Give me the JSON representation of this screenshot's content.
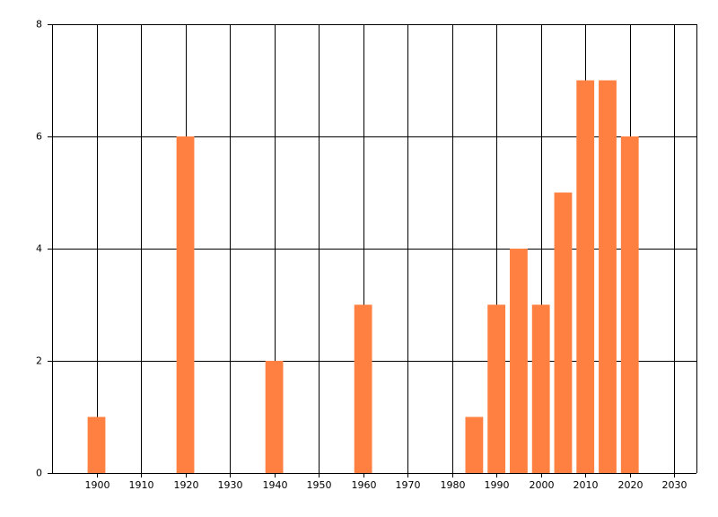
{
  "chart_data": {
    "type": "bar",
    "x": [
      1900,
      1920,
      1940,
      1960,
      1985,
      1990,
      1995,
      2000,
      2005,
      2010,
      2015,
      2020
    ],
    "values": [
      1,
      6,
      2,
      3,
      1,
      3,
      4,
      3,
      5,
      7,
      7,
      6
    ],
    "color": "#ff8040",
    "xlim": [
      1890,
      2035
    ],
    "xticks": [
      1900,
      1910,
      1920,
      1930,
      1940,
      1950,
      1960,
      1970,
      1980,
      1990,
      2000,
      2010,
      2020,
      2030
    ],
    "ylim": [
      0,
      8
    ],
    "yticks": [
      0,
      2,
      4,
      6,
      8
    ],
    "grid": true
  }
}
